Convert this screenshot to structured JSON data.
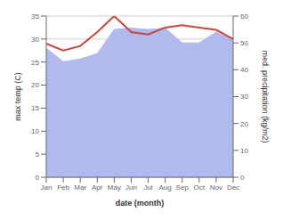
{
  "chart_data": {
    "type": "line",
    "xlabel": "date (month)",
    "ylabel": "max temp (C)",
    "y2label": "med. precipitation (kg/m2)",
    "categories": [
      "Jan",
      "Feb",
      "Mar",
      "Apr",
      "May",
      "Jun",
      "Jul",
      "Aug",
      "Sep",
      "Oct",
      "Nov",
      "Dec"
    ],
    "series": [
      {
        "type": "area",
        "axis": "y2",
        "color": "#b0baee",
        "values": [
          48.0,
          43.0,
          44.0,
          46.0,
          55.0,
          55.5,
          55.0,
          55.5,
          50.0,
          50.0,
          54.0,
          51.0
        ]
      },
      {
        "type": "line",
        "color": "#c8463a",
        "values": [
          29.0,
          27.5,
          28.5,
          31.5,
          35.0,
          31.5,
          31.0,
          32.5,
          33.0,
          32.5,
          32.0,
          30.0
        ]
      }
    ],
    "ylim": [
      0,
      35
    ],
    "yticks": [
      0,
      5,
      10,
      15,
      20,
      25,
      30,
      35
    ],
    "y2lim": [
      0,
      60
    ],
    "y2ticks": [
      0,
      10,
      20,
      30,
      40,
      50,
      60
    ],
    "grid": true
  }
}
